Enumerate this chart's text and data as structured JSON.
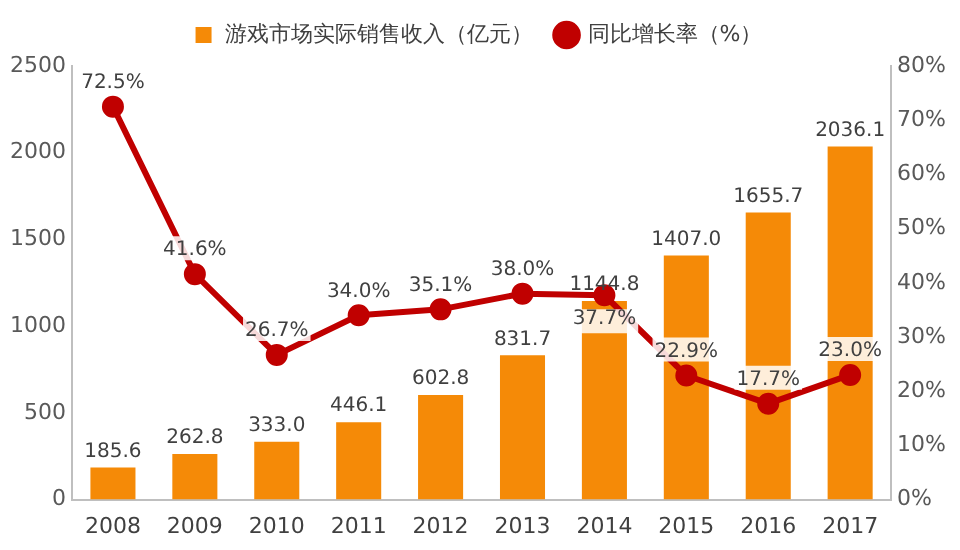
{
  "chart_data": {
    "type": "bar",
    "categories": [
      "2008",
      "2009",
      "2010",
      "2011",
      "2012",
      "2013",
      "2014",
      "2015",
      "2016",
      "2017"
    ],
    "series": [
      {
        "name": "游戏市场实际销售收入（亿元）",
        "color": "#f58a07",
        "values": [
          185.6,
          262.8,
          333.0,
          446.1,
          602.8,
          831.7,
          1144.8,
          1407.0,
          1655.7,
          2036.1
        ],
        "value_labels": [
          "185.6",
          "262.8",
          "333.0",
          "446.1",
          "602.8",
          "831.7",
          "1144.8",
          "1407.0",
          "1655.7",
          "2036.1"
        ]
      },
      {
        "name": "同比增长率（%）",
        "type": "line",
        "axis": "y2",
        "color": "#c00000",
        "marker": "circle",
        "values": [
          72.5,
          41.6,
          26.7,
          34.0,
          35.1,
          38.0,
          37.7,
          22.9,
          17.7,
          23.0
        ],
        "value_labels": [
          "72.5%",
          "41.6%",
          "26.7%",
          "34.0%",
          "35.1%",
          "38.0%",
          "37.7%",
          "22.9%",
          "17.7%",
          "23.0%"
        ]
      }
    ],
    "ylim": [
      0,
      2500
    ],
    "yticks": [
      0,
      500,
      1000,
      1500,
      2000,
      2500
    ],
    "y2lim": [
      0,
      80
    ],
    "y2ticks": [
      {
        "value": 0,
        "label": "0%"
      },
      {
        "value": 10,
        "label": "10%"
      },
      {
        "value": 20,
        "label": "20%"
      },
      {
        "value": 30,
        "label": "30%"
      },
      {
        "value": 40,
        "label": "40%"
      },
      {
        "value": 50,
        "label": "50%"
      },
      {
        "value": 60,
        "label": "60%"
      },
      {
        "value": 70,
        "label": "70%"
      },
      {
        "value": 80,
        "label": "80%"
      }
    ],
    "grid": false,
    "legend": "top"
  }
}
